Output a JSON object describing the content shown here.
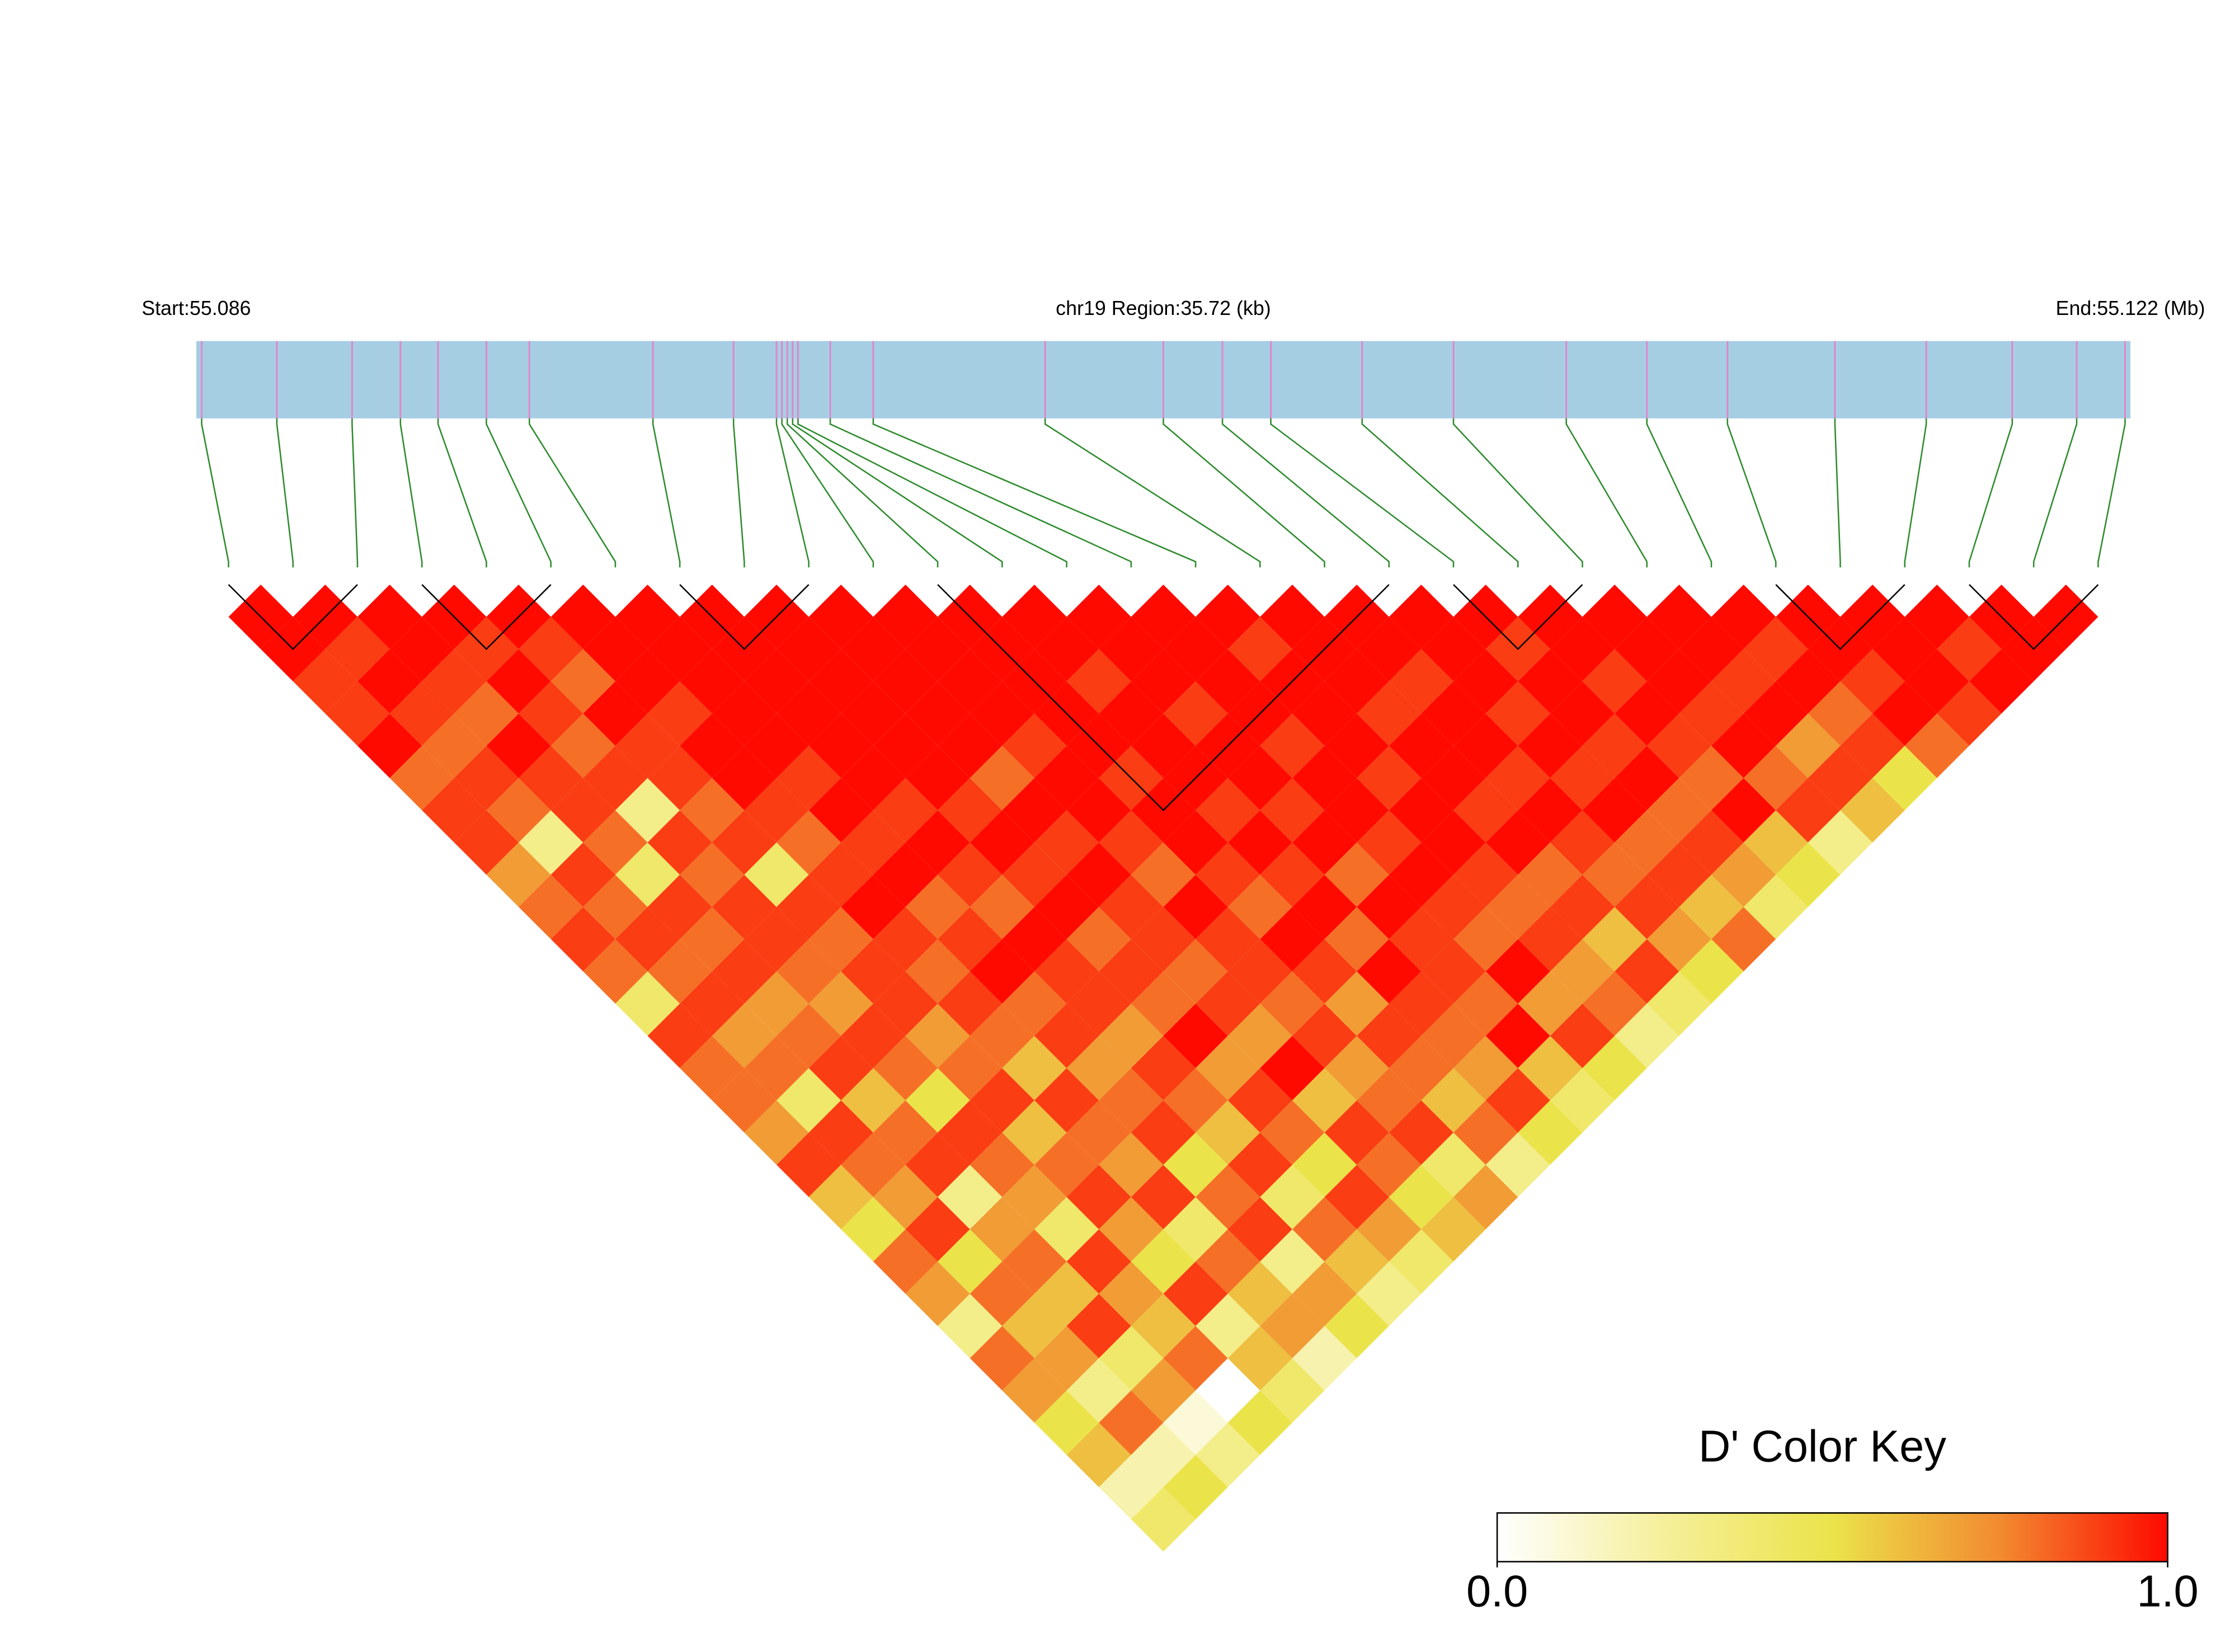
{
  "chart_data": {
    "type": "ld_heatmap",
    "start_label": "Start:55.086",
    "region_label": "chr19 Region:35.72 (kb)",
    "end_label": "End:55.122 (Mb)",
    "key_title": "D' Color Key",
    "xlim": [
      55.086,
      55.122
    ],
    "positions": [
      55.0861,
      55.0875,
      55.0889,
      55.0898,
      55.0905,
      55.0914,
      55.0922,
      55.0945,
      55.096,
      55.0968,
      55.0969,
      55.097,
      55.0971,
      55.0972,
      55.0978,
      55.0986,
      55.1018,
      55.104,
      55.1051,
      55.106,
      55.1077,
      55.1094,
      55.1115,
      55.113,
      55.1145,
      55.1165,
      55.1182,
      55.1198,
      55.121,
      55.1219
    ],
    "values": [
      [
        1,
        1,
        0.9,
        0.9,
        1,
        0.8,
        0.9,
        0.9,
        0.7,
        0.8,
        0.9,
        0.8,
        0.4,
        0.9,
        0.8,
        0.8,
        0.7,
        0.9,
        0.6,
        0.5,
        0.8,
        0.7,
        0.3,
        0.8,
        0.7,
        0.5,
        0.6,
        0.2,
        0.4
      ],
      [
        1,
        0.9,
        1,
        0.9,
        0.8,
        0.9,
        0.8,
        0.3,
        0.9,
        0.8,
        0.9,
        0.8,
        0.9,
        0.7,
        0.8,
        0.4,
        0.9,
        0.8,
        0.7,
        0.9,
        0.5,
        0.8,
        0.6,
        0.7,
        0.3,
        0.8,
        0.2,
        0.5
      ],
      [
        1,
        1,
        0.9,
        0.8,
        1,
        0.9,
        0.9,
        0.8,
        0.4,
        0.9,
        0.8,
        0.9,
        0.7,
        0.8,
        0.9,
        0.6,
        0.8,
        0.9,
        0.3,
        0.7,
        0.8,
        0.6,
        0.9,
        0.4,
        0.7,
        0.1,
        0.3
      ],
      [
        1,
        0.9,
        1,
        0.9,
        0.8,
        0.9,
        0.3,
        0.9,
        0.8,
        0.9,
        0.9,
        0.8,
        0.7,
        0.9,
        0.8,
        0.5,
        0.9,
        0.8,
        0.7,
        0.4,
        0.9,
        0.7,
        0.6,
        0.8,
        0,
        0.5
      ],
      [
        1,
        0.9,
        0.8,
        1,
        0.9,
        0.9,
        0.8,
        0.9,
        0.4,
        0.9,
        0.8,
        0.9,
        0.9,
        0.7,
        0.8,
        0.9,
        0.6,
        0.8,
        0.9,
        0.7,
        0.5,
        0.9,
        0.3,
        0.6,
        0.4
      ],
      [
        1,
        1,
        1,
        0.9,
        1,
        1,
        0.9,
        0.8,
        0.9,
        1,
        0.9,
        0.8,
        0.9,
        0.8,
        0.6,
        0.9,
        0.8,
        0.7,
        0.9,
        0.4,
        0.8,
        0.6,
        0.7,
        0.2
      ],
      [
        1,
        1,
        1,
        1,
        1,
        0.9,
        1,
        0.9,
        1,
        0.8,
        0.9,
        1,
        0.8,
        0.9,
        0.7,
        0.8,
        0.9,
        0.5,
        0.8,
        0.9,
        0.3,
        0.7,
        0.5
      ],
      [
        1,
        1,
        1,
        1,
        1,
        1,
        0.9,
        1,
        0.9,
        0.8,
        1,
        0.9,
        0.9,
        0.7,
        0.9,
        0.8,
        0.6,
        0.9,
        0.4,
        0.8,
        0.6,
        0.3
      ],
      [
        1,
        1,
        1,
        1,
        1,
        1,
        0.9,
        1,
        0.9,
        1,
        0.8,
        0.9,
        0.8,
        1,
        0.7,
        0.9,
        0.8,
        0.5,
        0.9,
        0.7,
        0.4
      ],
      [
        1,
        1,
        1,
        1,
        1,
        0.8,
        1,
        0.9,
        1,
        0.9,
        0.9,
        0.8,
        0.9,
        0.7,
        1,
        0.6,
        0.9,
        0.8,
        0.5,
        0.6
      ],
      [
        1,
        1,
        1,
        1,
        0.9,
        1,
        1,
        0.9,
        0.8,
        1,
        0.9,
        0.9,
        0.8,
        0.9,
        0.7,
        0.8,
        0.9,
        0.4,
        0.7
      ],
      [
        1,
        1,
        1,
        1,
        1,
        0.9,
        1,
        1,
        0.9,
        0.8,
        1,
        0.9,
        0.7,
        0.9,
        0.8,
        0.6,
        0.8,
        0.3
      ],
      [
        1,
        1,
        0.9,
        1,
        1,
        1,
        0.9,
        1,
        0.9,
        1,
        0.8,
        1,
        0.9,
        0.8,
        0.7,
        0.9,
        0.5
      ],
      [
        1,
        1,
        1,
        0.9,
        1,
        1,
        0.9,
        1,
        0.8,
        1,
        0.9,
        0.9,
        0.8,
        1,
        0.6,
        0.4
      ],
      [
        1,
        1,
        1,
        1,
        0.9,
        1,
        1,
        0.9,
        1,
        0.9,
        0.8,
        1,
        0.7,
        0.9,
        0.5
      ],
      [
        1,
        0.9,
        1,
        1,
        1,
        0.9,
        1,
        1,
        0.9,
        0.8,
        0.9,
        0.7,
        0.8,
        0.3
      ],
      [
        1,
        1,
        1,
        0.9,
        1,
        1,
        0.9,
        1,
        0.8,
        0.9,
        0.6,
        0.9,
        0.4
      ],
      [
        1,
        1,
        0.9,
        1,
        1,
        0.9,
        1,
        0.9,
        0.8,
        0.9,
        0.7,
        0.5
      ],
      [
        1,
        1,
        1,
        0.9,
        1,
        0.9,
        1,
        0.8,
        0.9,
        0.6,
        0.8
      ],
      [
        1,
        0.9,
        1,
        1,
        0.9,
        1,
        0.8,
        0.9,
        0.7,
        0.4
      ],
      [
        1,
        1,
        0.9,
        1,
        0.9,
        0.8,
        1,
        0.6,
        0.5
      ],
      [
        1,
        1,
        1,
        0.9,
        1,
        0.8,
        0.9,
        0.3
      ],
      [
        1,
        1,
        0.9,
        1,
        0.7,
        0.9,
        0.6
      ],
      [
        1,
        0.9,
        1,
        0.8,
        0.9,
        0.5
      ],
      [
        1,
        1,
        0.9,
        1,
        0.8
      ],
      [
        1,
        1,
        1,
        0.9
      ],
      [
        1,
        0.9,
        1
      ],
      [
        1,
        1
      ],
      [
        1
      ]
    ],
    "blocks": [
      [
        0,
        2
      ],
      [
        3,
        5
      ],
      [
        7,
        9
      ],
      [
        11,
        18
      ],
      [
        19,
        21
      ],
      [
        24,
        26
      ],
      [
        27,
        29
      ]
    ],
    "colorscale": [
      "#ffffff",
      "#f5ef9a",
      "#ebe34a",
      "#f28a30",
      "#ff0a00"
    ],
    "key_lim": [
      0,
      1
    ],
    "key_ticks": [
      {
        "value": 0,
        "label": "0.0"
      },
      {
        "value": 1,
        "label": "1.0"
      }
    ],
    "bar_color": "#a6cee3",
    "snp_line_color": "#dd88cc",
    "connector_color": "#2e8b2e"
  }
}
